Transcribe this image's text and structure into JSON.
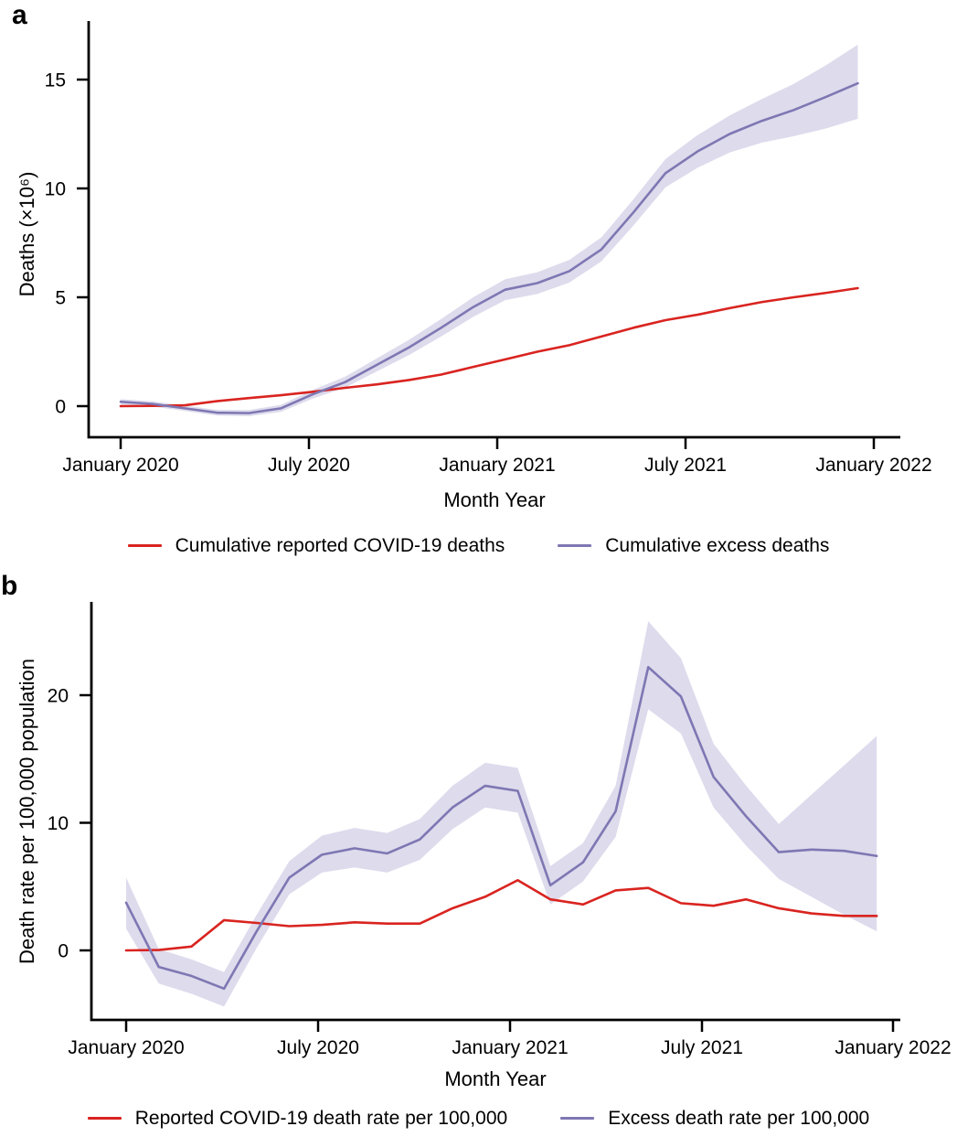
{
  "figure": {
    "panel_a_letter": "a",
    "panel_b_letter": "b"
  },
  "chart_data": [
    {
      "type": "line",
      "panel": "a",
      "xlabel": "Month Year",
      "ylabel": "Deaths  (×10⁶)",
      "x_tick_labels": [
        "January 2020",
        "July 2020",
        "January 2021",
        "July 2021",
        "January 2022"
      ],
      "y_ticks": [
        0,
        5,
        10,
        15
      ],
      "ylim": [
        -1.5,
        17.5
      ],
      "grid": false,
      "legend_position": "bottom",
      "x_months": [
        "2020-01",
        "2020-02",
        "2020-03",
        "2020-04",
        "2020-05",
        "2020-06",
        "2020-07",
        "2020-08",
        "2020-09",
        "2020-10",
        "2020-11",
        "2020-12",
        "2021-01",
        "2021-02",
        "2021-03",
        "2021-04",
        "2021-05",
        "2021-06",
        "2021-07",
        "2021-08",
        "2021-09",
        "2021-10",
        "2021-11",
        "2021-12"
      ],
      "series": [
        {
          "key": "reported",
          "name": "Cumulative reported COVID-19 deaths",
          "color": "#d92420",
          "values": [
            0,
            0.01,
            0.04,
            0.23,
            0.37,
            0.5,
            0.66,
            0.84,
            1.0,
            1.2,
            1.45,
            1.8,
            2.15,
            2.5,
            2.8,
            3.2,
            3.6,
            3.95,
            4.2,
            4.5,
            4.78,
            5.0,
            5.2,
            5.42
          ]
        },
        {
          "key": "excess",
          "name": "Cumulative excess deaths",
          "color": "#7e77b3",
          "band_color": "#dddbec",
          "values": [
            0.2,
            0.1,
            -0.1,
            -0.3,
            -0.32,
            -0.1,
            0.55,
            1.1,
            1.9,
            2.7,
            3.6,
            4.55,
            5.35,
            5.65,
            6.2,
            7.2,
            8.9,
            10.7,
            11.7,
            12.5,
            13.1,
            13.6,
            14.2,
            14.83
          ],
          "upper": [
            0.32,
            0.22,
            0.02,
            -0.17,
            -0.18,
            0.06,
            0.75,
            1.35,
            2.2,
            3.05,
            4.0,
            5.0,
            5.83,
            6.15,
            6.72,
            7.75,
            9.5,
            11.35,
            12.45,
            13.35,
            14.1,
            14.8,
            15.65,
            16.6
          ],
          "lower": [
            0.08,
            -0.02,
            -0.22,
            -0.43,
            -0.46,
            -0.26,
            0.35,
            0.85,
            1.6,
            2.35,
            3.2,
            4.1,
            4.87,
            5.15,
            5.68,
            6.65,
            8.3,
            10.05,
            10.95,
            11.65,
            12.1,
            12.4,
            12.75,
            13.2
          ]
        }
      ]
    },
    {
      "type": "line",
      "panel": "b",
      "xlabel": "Month Year",
      "ylabel": "Death rate per 100,000 population",
      "x_tick_labels": [
        "January 2020",
        "July 2020",
        "January 2021",
        "July 2021",
        "January 2022"
      ],
      "y_ticks": [
        0,
        10,
        20
      ],
      "ylim": [
        -5.5,
        27
      ],
      "grid": false,
      "legend_position": "bottom",
      "x_months": [
        "2020-01",
        "2020-02",
        "2020-03",
        "2020-04",
        "2020-05",
        "2020-06",
        "2020-07",
        "2020-08",
        "2020-09",
        "2020-10",
        "2020-11",
        "2020-12",
        "2021-01",
        "2021-02",
        "2021-03",
        "2021-04",
        "2021-05",
        "2021-06",
        "2021-07",
        "2021-08",
        "2021-09",
        "2021-10",
        "2021-11",
        "2021-12"
      ],
      "series": [
        {
          "key": "reported",
          "name": "Reported COVID-19 death rate per 100,000",
          "color": "#d92420",
          "values": [
            0,
            0.03,
            0.3,
            2.37,
            2.15,
            1.9,
            2.0,
            2.2,
            2.1,
            2.1,
            3.3,
            4.2,
            5.5,
            4.0,
            3.6,
            4.7,
            4.9,
            3.7,
            3.5,
            4.0,
            3.3,
            2.9,
            2.7,
            2.7
          ]
        },
        {
          "key": "excess",
          "name": "Excess death rate per 100,000",
          "color": "#7e77b3",
          "band_color": "#dddbec",
          "values": [
            3.74,
            -1.3,
            -2.0,
            -3.0,
            1.5,
            5.7,
            7.5,
            8.0,
            7.6,
            8.7,
            11.2,
            12.9,
            12.5,
            5.1,
            6.9,
            10.9,
            22.2,
            19.9,
            13.6,
            10.5,
            7.7,
            7.9,
            7.8,
            7.4
          ],
          "upper": [
            5.7,
            0.1,
            -0.7,
            -1.7,
            2.8,
            7.0,
            9.0,
            9.6,
            9.2,
            10.3,
            12.9,
            14.7,
            14.3,
            6.6,
            8.4,
            12.9,
            25.8,
            22.9,
            16.2,
            12.9,
            9.9,
            12.2,
            14.5,
            16.8
          ],
          "lower": [
            1.7,
            -2.6,
            -3.4,
            -4.4,
            0.2,
            4.4,
            6.1,
            6.5,
            6.1,
            7.1,
            9.5,
            11.2,
            10.8,
            3.6,
            5.4,
            8.9,
            18.9,
            17.0,
            11.2,
            8.2,
            5.6,
            4.2,
            2.8,
            1.5
          ]
        }
      ]
    }
  ]
}
